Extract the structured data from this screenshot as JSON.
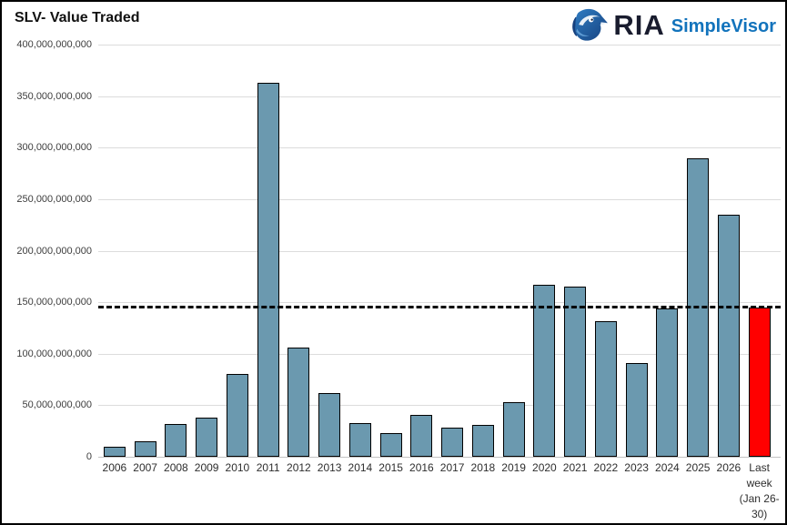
{
  "header": {
    "title": "SLV- Value Traded",
    "logo": {
      "ria": "RIA",
      "simplevisor": "SimpleVisor"
    }
  },
  "colors": {
    "bar_fill": "#6b99af",
    "bar_border": "#000000",
    "highlight_fill": "#ff0000",
    "gridline": "#dcdcdc",
    "axis_baseline": "#c3c3c3",
    "reference_line": "#000000",
    "logo_text_dark": "#191c2e",
    "logo_text_blue": "#1273bc",
    "eagle_blue_dark": "#16417e",
    "eagle_blue_light": "#2f7cc2"
  },
  "chart_data": {
    "type": "bar",
    "title": "SLV- Value Traded",
    "xlabel": "",
    "ylabel": "",
    "grid": "horizontal",
    "legend": "none",
    "ylim": [
      0,
      400000000000
    ],
    "categories": [
      "2006",
      "2007",
      "2008",
      "2009",
      "2010",
      "2011",
      "2012",
      "2013",
      "2014",
      "2015",
      "2016",
      "2017",
      "2018",
      "2019",
      "2020",
      "2021",
      "2022",
      "2023",
      "2024",
      "2025",
      "2026",
      "Last week (Jan 26-30)"
    ],
    "values": [
      10000000000,
      15000000000,
      32000000000,
      38000000000,
      80000000000,
      363000000000,
      106000000000,
      62000000000,
      33000000000,
      23000000000,
      41000000000,
      28000000000,
      31000000000,
      53000000000,
      167000000000,
      165000000000,
      132000000000,
      91000000000,
      144000000000,
      290000000000,
      235000000000,
      145000000000
    ],
    "bar_color": "#6b99af",
    "highlight": {
      "category": "Last week (Jan 26-30)",
      "color": "#ff0000"
    },
    "reference_line": {
      "value": 145500000000,
      "style": "dashed",
      "color": "#000000"
    },
    "y_ticks": [
      {
        "label": "0",
        "value": 0
      },
      {
        "label": "50,000,000,000",
        "value": 50000000000
      },
      {
        "label": "100,000,000,000",
        "value": 100000000000
      },
      {
        "label": "150,000,000,000",
        "value": 150000000000
      },
      {
        "label": "200,000,000,000",
        "value": 200000000000
      },
      {
        "label": "250,000,000,000",
        "value": 250000000000
      },
      {
        "label": "300,000,000,000",
        "value": 300000000000
      },
      {
        "label": "350,000,000,000",
        "value": 350000000000
      },
      {
        "label": "400,000,000,000",
        "value": 400000000000
      }
    ]
  }
}
